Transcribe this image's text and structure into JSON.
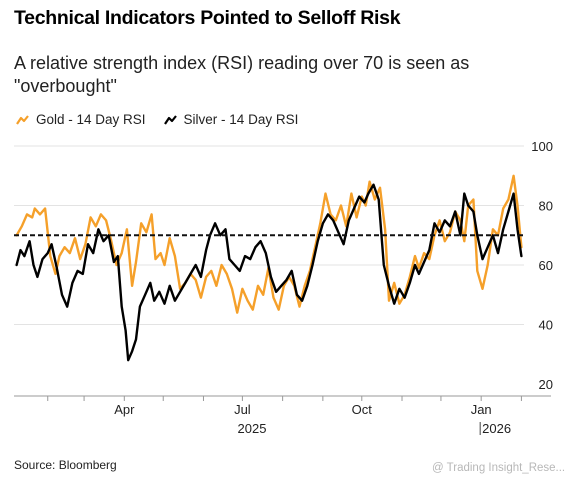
{
  "title": "Technical Indicators Pointed to Selloff Risk",
  "subtitle": "A relative strength index (RSI) reading over 70 is seen as \"overbought\"",
  "source": "Source: Bloomberg",
  "watermark": "@ Trading Insight_Rese...",
  "colors": {
    "gold": "#f5a02a",
    "silver": "#000000",
    "grid": "#e3e3e3",
    "axis": "#999999"
  },
  "chart_data": {
    "type": "line",
    "title": "Technical Indicators Pointed to Selloff Risk",
    "subtitle": "A relative strength index (RSI) reading over 70 is seen as \"overbought\"",
    "x_ticks": [
      "Apr",
      "Jul",
      "Oct",
      "Jan"
    ],
    "year_labels": [
      "2025",
      "2026"
    ],
    "y_ticks": [
      20,
      40,
      60,
      80,
      100
    ],
    "ylim": [
      20,
      100
    ],
    "xlim": [
      "2025-01-06",
      "2026-02-03"
    ],
    "reference_line": {
      "value": 70,
      "style": "dashed"
    },
    "legend": [
      "Gold - 14 Day RSI",
      "Silver - 14 Day RSI"
    ],
    "legend_position": "top-left",
    "grid": "horizontal",
    "series": [
      {
        "name": "Gold - 14 Day RSI",
        "color": "#f5a02a",
        "points": [
          [
            "2025-01-08",
            70
          ],
          [
            "2025-01-12",
            73
          ],
          [
            "2025-01-16",
            77
          ],
          [
            "2025-01-20",
            76
          ],
          [
            "2025-01-22",
            79
          ],
          [
            "2025-01-26",
            77
          ],
          [
            "2025-01-30",
            79
          ],
          [
            "2025-02-03",
            63
          ],
          [
            "2025-02-07",
            57
          ],
          [
            "2025-02-10",
            63
          ],
          [
            "2025-02-14",
            66
          ],
          [
            "2025-02-18",
            64
          ],
          [
            "2025-02-22",
            69
          ],
          [
            "2025-02-26",
            62
          ],
          [
            "2025-03-02",
            67
          ],
          [
            "2025-03-06",
            76
          ],
          [
            "2025-03-10",
            73
          ],
          [
            "2025-03-14",
            77
          ],
          [
            "2025-03-18",
            75
          ],
          [
            "2025-03-22",
            68
          ],
          [
            "2025-03-26",
            60
          ],
          [
            "2025-03-30",
            64
          ],
          [
            "2025-04-03",
            72
          ],
          [
            "2025-04-07",
            53
          ],
          [
            "2025-04-10",
            61
          ],
          [
            "2025-04-14",
            74
          ],
          [
            "2025-04-18",
            71
          ],
          [
            "2025-04-22",
            77
          ],
          [
            "2025-04-25",
            62
          ],
          [
            "2025-04-29",
            64
          ],
          [
            "2025-05-02",
            60
          ],
          [
            "2025-05-06",
            69
          ],
          [
            "2025-05-10",
            63
          ],
          [
            "2025-05-14",
            52
          ],
          [
            "2025-05-18",
            54
          ],
          [
            "2025-05-22",
            57
          ],
          [
            "2025-05-26",
            55
          ],
          [
            "2025-05-30",
            49
          ],
          [
            "2025-06-03",
            56
          ],
          [
            "2025-06-07",
            58
          ],
          [
            "2025-06-11",
            53
          ],
          [
            "2025-06-15",
            60
          ],
          [
            "2025-06-19",
            57
          ],
          [
            "2025-06-23",
            52
          ],
          [
            "2025-06-27",
            44
          ],
          [
            "2025-07-01",
            52
          ],
          [
            "2025-07-05",
            48
          ],
          [
            "2025-07-09",
            45
          ],
          [
            "2025-07-13",
            53
          ],
          [
            "2025-07-17",
            50
          ],
          [
            "2025-07-21",
            59
          ],
          [
            "2025-07-25",
            49
          ],
          [
            "2025-07-29",
            45
          ],
          [
            "2025-08-02",
            53
          ],
          [
            "2025-08-06",
            56
          ],
          [
            "2025-08-10",
            53
          ],
          [
            "2025-08-14",
            46
          ],
          [
            "2025-08-18",
            53
          ],
          [
            "2025-08-22",
            58
          ],
          [
            "2025-08-26",
            66
          ],
          [
            "2025-08-30",
            74
          ],
          [
            "2025-09-03",
            84
          ],
          [
            "2025-09-07",
            77
          ],
          [
            "2025-09-11",
            75
          ],
          [
            "2025-09-15",
            80
          ],
          [
            "2025-09-19",
            73
          ],
          [
            "2025-09-23",
            84
          ],
          [
            "2025-09-27",
            76
          ],
          [
            "2025-10-01",
            83
          ],
          [
            "2025-10-04",
            80
          ],
          [
            "2025-10-07",
            88
          ],
          [
            "2025-10-11",
            82
          ],
          [
            "2025-10-15",
            86
          ],
          [
            "2025-10-19",
            72
          ],
          [
            "2025-10-22",
            48
          ],
          [
            "2025-10-26",
            54
          ],
          [
            "2025-10-30",
            47
          ],
          [
            "2025-11-03",
            50
          ],
          [
            "2025-11-07",
            56
          ],
          [
            "2025-11-11",
            63
          ],
          [
            "2025-11-14",
            59
          ],
          [
            "2025-11-18",
            64
          ],
          [
            "2025-11-22",
            62
          ],
          [
            "2025-11-26",
            70
          ],
          [
            "2025-11-30",
            75
          ],
          [
            "2025-12-04",
            68
          ],
          [
            "2025-12-08",
            71
          ],
          [
            "2025-12-12",
            78
          ],
          [
            "2025-12-16",
            75
          ],
          [
            "2025-12-19",
            68
          ],
          [
            "2025-12-22",
            80
          ],
          [
            "2025-12-26",
            82
          ],
          [
            "2025-12-29",
            58
          ],
          [
            "2026-01-02",
            52
          ],
          [
            "2026-01-06",
            60
          ],
          [
            "2026-01-10",
            72
          ],
          [
            "2026-01-14",
            70
          ],
          [
            "2026-01-18",
            79
          ],
          [
            "2026-01-22",
            82
          ],
          [
            "2026-01-26",
            90
          ],
          [
            "2026-01-29",
            80
          ],
          [
            "2026-02-01",
            66
          ]
        ]
      },
      {
        "name": "Silver - 14 Day RSI",
        "color": "#000000",
        "points": [
          [
            "2025-01-08",
            60
          ],
          [
            "2025-01-11",
            65
          ],
          [
            "2025-01-14",
            63
          ],
          [
            "2025-01-18",
            68
          ],
          [
            "2025-01-21",
            60
          ],
          [
            "2025-01-24",
            56
          ],
          [
            "2025-01-28",
            62
          ],
          [
            "2025-02-01",
            64
          ],
          [
            "2025-02-04",
            67
          ],
          [
            "2025-02-08",
            59
          ],
          [
            "2025-02-12",
            50
          ],
          [
            "2025-02-16",
            46
          ],
          [
            "2025-02-20",
            54
          ],
          [
            "2025-02-24",
            58
          ],
          [
            "2025-02-28",
            57
          ],
          [
            "2025-03-04",
            67
          ],
          [
            "2025-03-08",
            64
          ],
          [
            "2025-03-12",
            72
          ],
          [
            "2025-03-16",
            68
          ],
          [
            "2025-03-20",
            70
          ],
          [
            "2025-03-24",
            61
          ],
          [
            "2025-03-27",
            63
          ],
          [
            "2025-03-30",
            46
          ],
          [
            "2025-04-02",
            38
          ],
          [
            "2025-04-04",
            28
          ],
          [
            "2025-04-07",
            31
          ],
          [
            "2025-04-10",
            35
          ],
          [
            "2025-04-13",
            46
          ],
          [
            "2025-04-17",
            50
          ],
          [
            "2025-04-21",
            54
          ],
          [
            "2025-04-24",
            48
          ],
          [
            "2025-04-28",
            51
          ],
          [
            "2025-05-02",
            47
          ],
          [
            "2025-05-06",
            53
          ],
          [
            "2025-05-10",
            48
          ],
          [
            "2025-05-14",
            51
          ],
          [
            "2025-05-18",
            54
          ],
          [
            "2025-05-22",
            57
          ],
          [
            "2025-05-26",
            60
          ],
          [
            "2025-05-30",
            56
          ],
          [
            "2025-06-03",
            65
          ],
          [
            "2025-06-06",
            70
          ],
          [
            "2025-06-10",
            74
          ],
          [
            "2025-06-14",
            70
          ],
          [
            "2025-06-18",
            72
          ],
          [
            "2025-06-21",
            62
          ],
          [
            "2025-06-25",
            60
          ],
          [
            "2025-06-29",
            58
          ],
          [
            "2025-07-03",
            63
          ],
          [
            "2025-07-07",
            62
          ],
          [
            "2025-07-11",
            66
          ],
          [
            "2025-07-15",
            68
          ],
          [
            "2025-07-19",
            64
          ],
          [
            "2025-07-23",
            56
          ],
          [
            "2025-07-27",
            51
          ],
          [
            "2025-07-31",
            53
          ],
          [
            "2025-08-04",
            55
          ],
          [
            "2025-08-08",
            58
          ],
          [
            "2025-08-12",
            50
          ],
          [
            "2025-08-16",
            48
          ],
          [
            "2025-08-20",
            53
          ],
          [
            "2025-08-24",
            60
          ],
          [
            "2025-08-28",
            68
          ],
          [
            "2025-09-01",
            74
          ],
          [
            "2025-09-05",
            77
          ],
          [
            "2025-09-09",
            75
          ],
          [
            "2025-09-13",
            71
          ],
          [
            "2025-09-17",
            67
          ],
          [
            "2025-09-21",
            75
          ],
          [
            "2025-09-25",
            79
          ],
          [
            "2025-09-29",
            83
          ],
          [
            "2025-10-03",
            81
          ],
          [
            "2025-10-06",
            84
          ],
          [
            "2025-10-10",
            87
          ],
          [
            "2025-10-14",
            82
          ],
          [
            "2025-10-18",
            60
          ],
          [
            "2025-10-22",
            53
          ],
          [
            "2025-10-26",
            47
          ],
          [
            "2025-10-30",
            52
          ],
          [
            "2025-11-03",
            49
          ],
          [
            "2025-11-07",
            54
          ],
          [
            "2025-11-11",
            60
          ],
          [
            "2025-11-14",
            57
          ],
          [
            "2025-11-18",
            61
          ],
          [
            "2025-11-22",
            65
          ],
          [
            "2025-11-26",
            74
          ],
          [
            "2025-11-30",
            71
          ],
          [
            "2025-12-04",
            75
          ],
          [
            "2025-12-08",
            73
          ],
          [
            "2025-12-12",
            78
          ],
          [
            "2025-12-16",
            70
          ],
          [
            "2025-12-19",
            84
          ],
          [
            "2025-12-22",
            80
          ],
          [
            "2025-12-26",
            78
          ],
          [
            "2025-12-29",
            70
          ],
          [
            "2026-01-02",
            62
          ],
          [
            "2026-01-06",
            66
          ],
          [
            "2026-01-10",
            70
          ],
          [
            "2026-01-14",
            64
          ],
          [
            "2026-01-18",
            72
          ],
          [
            "2026-01-22",
            78
          ],
          [
            "2026-01-26",
            84
          ],
          [
            "2026-01-29",
            72
          ],
          [
            "2026-02-01",
            63
          ]
        ]
      }
    ]
  }
}
